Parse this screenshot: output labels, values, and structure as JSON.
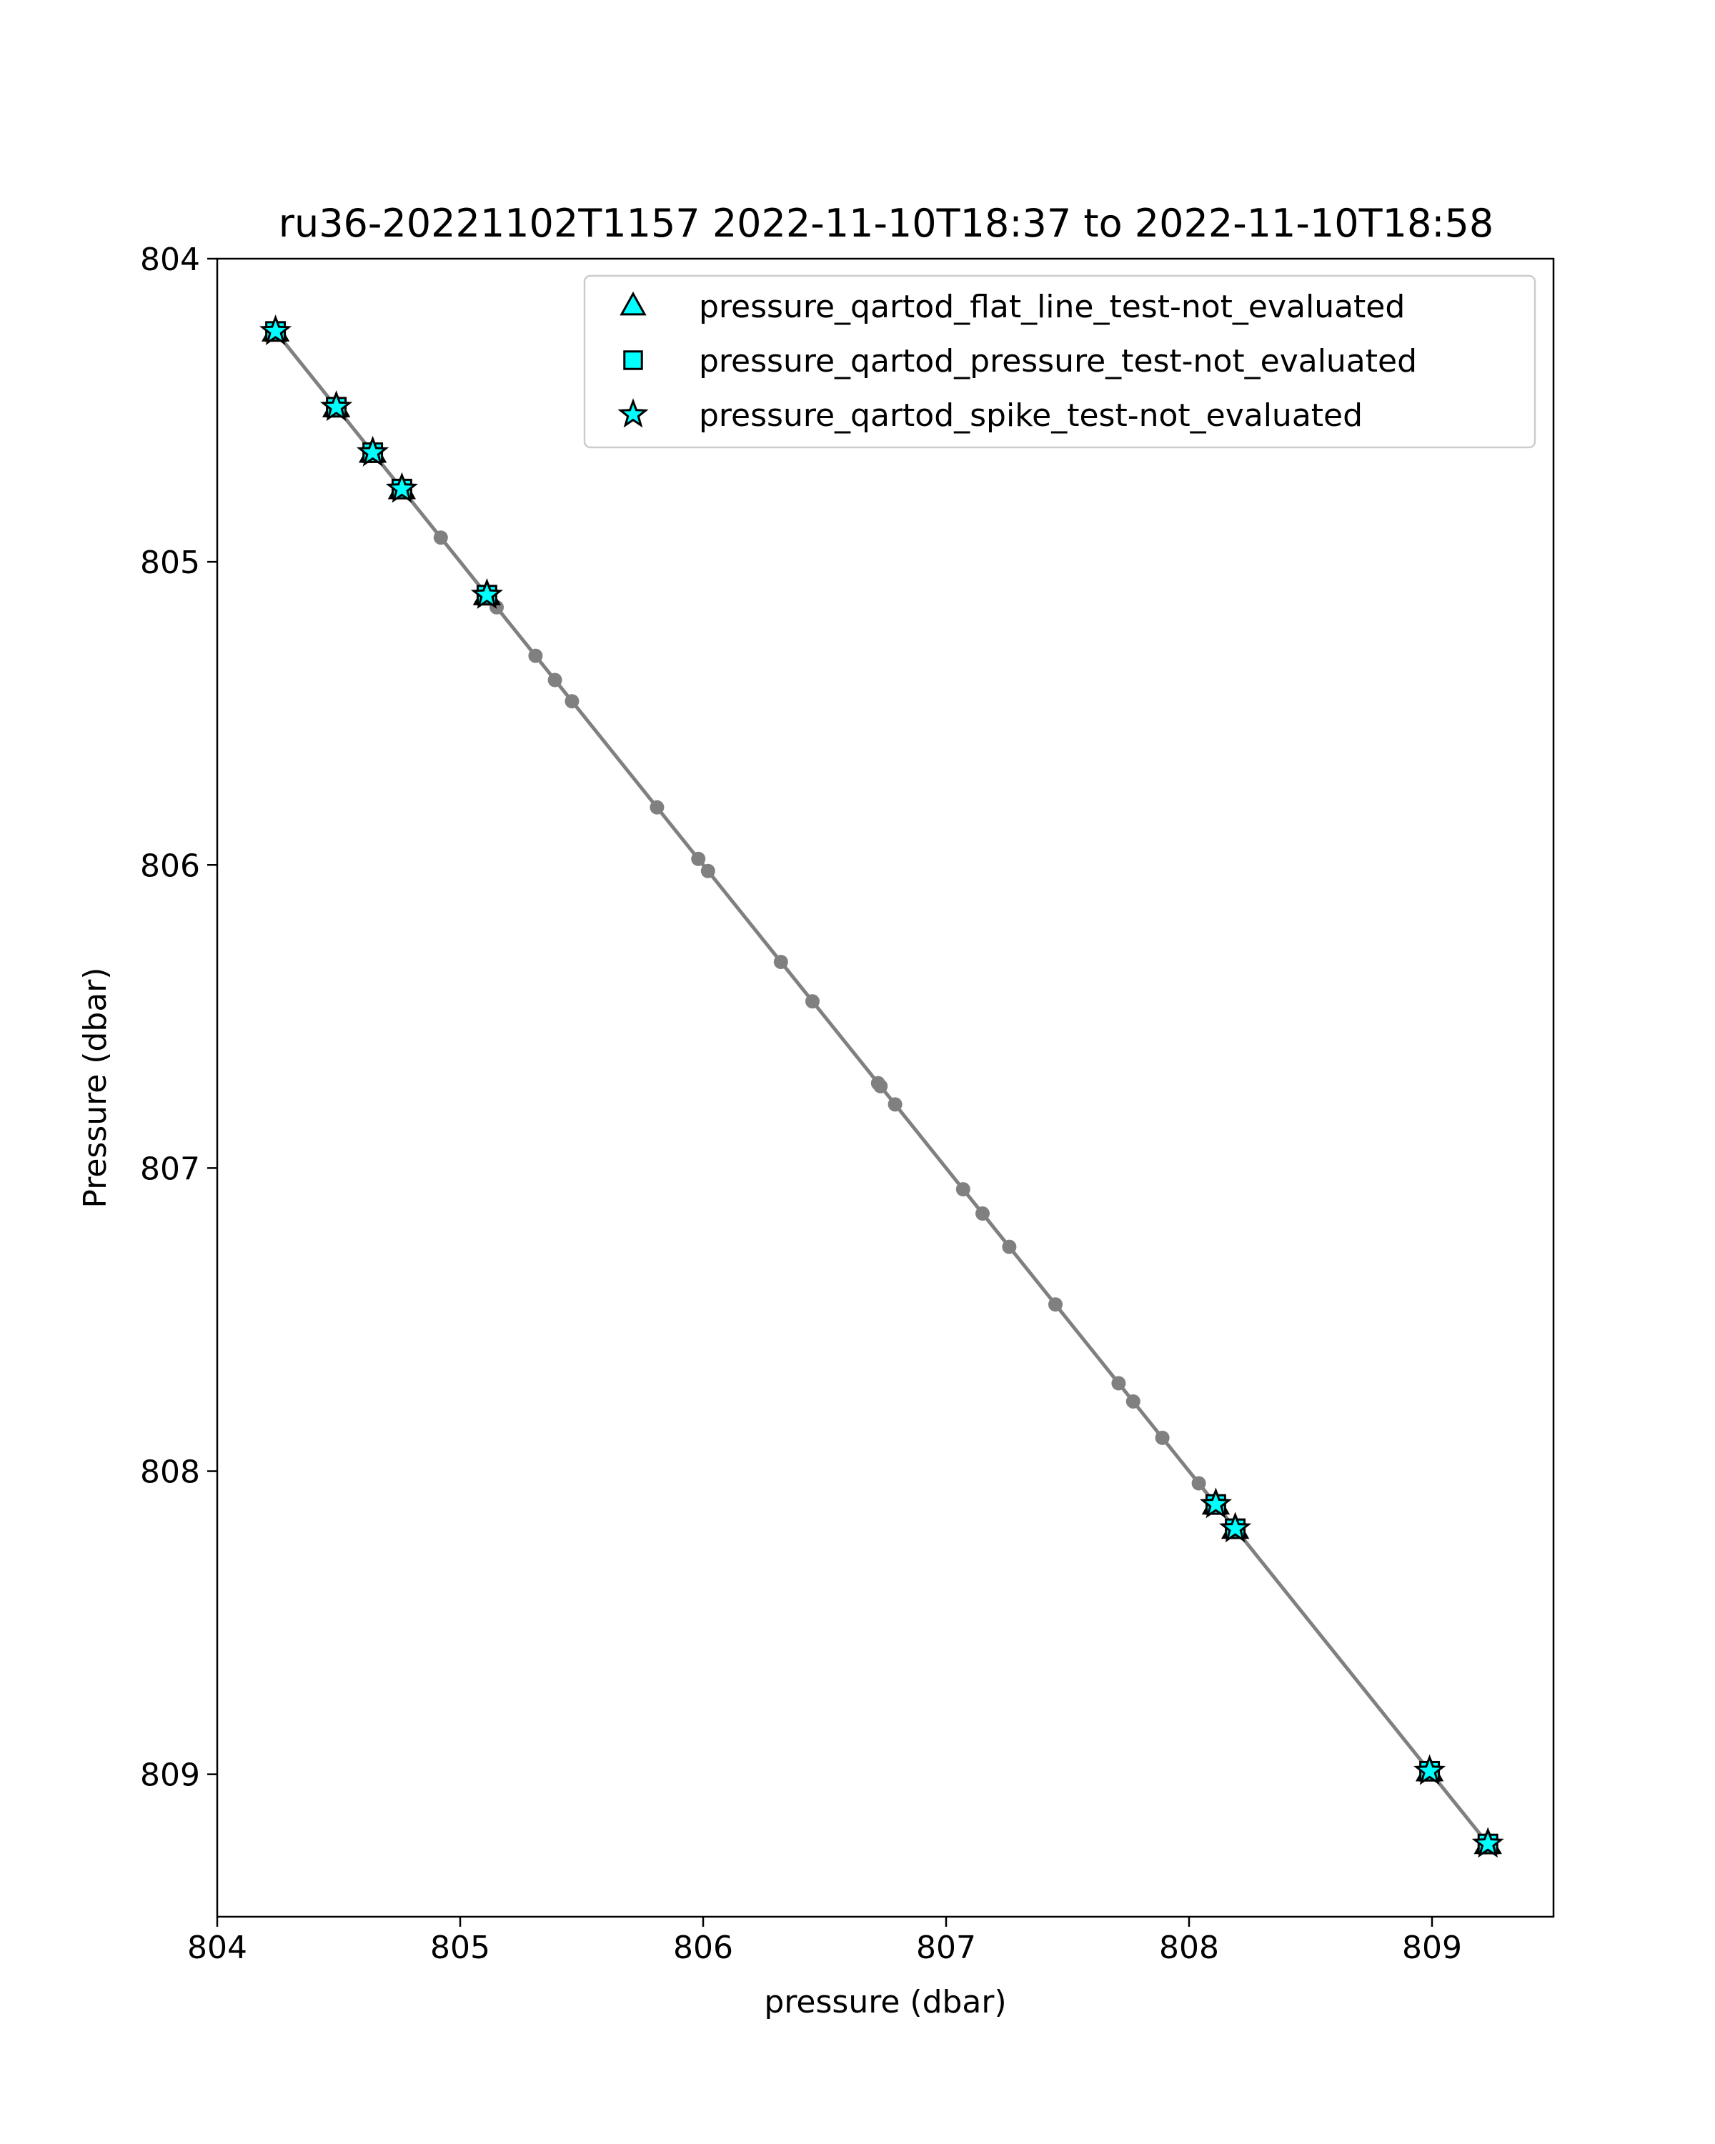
{
  "chart_data": {
    "type": "scatter",
    "title": "ru36-20221102T1157 2022-11-10T18:37 to 2022-11-10T18:58",
    "xlabel": "pressure (dbar)",
    "ylabel": "Pressure (dbar)",
    "xlim": [
      804.0,
      809.5
    ],
    "ylim": [
      809.47,
      804.0
    ],
    "y_inverted": true,
    "grid": false,
    "legend_position": "top-right",
    "xticks": [
      "804",
      "805",
      "806",
      "807",
      "808",
      "809"
    ],
    "yticks": [
      "804",
      "805",
      "806",
      "807",
      "808",
      "809"
    ],
    "line": {
      "color": "#808080",
      "points": [
        804.24,
        804.49,
        804.64,
        804.76,
        804.92,
        805.11,
        805.15,
        805.31,
        805.39,
        805.46,
        805.81,
        805.98,
        806.02,
        806.32,
        806.45,
        806.72,
        806.73,
        806.79,
        807.07,
        807.15,
        807.26,
        807.45,
        807.71,
        807.77,
        807.89,
        808.04,
        808.11,
        808.19,
        808.99,
        809.23
      ]
    },
    "series": [
      {
        "name": "pressure_qartod_flat_line_test-not_evaluated",
        "marker": "triangle",
        "color": "#00ffff",
        "x": [
          804.24,
          804.49,
          804.64,
          804.76,
          805.11,
          808.11,
          808.19,
          808.99,
          809.23
        ],
        "y": [
          804.24,
          804.49,
          804.64,
          804.76,
          805.11,
          808.11,
          808.19,
          808.99,
          809.23
        ]
      },
      {
        "name": "pressure_qartod_pressure_test-not_evaluated",
        "marker": "square",
        "color": "#00ffff",
        "x": [
          804.24,
          804.49,
          804.64,
          804.76,
          805.11,
          808.11,
          808.19,
          808.99,
          809.23
        ],
        "y": [
          804.24,
          804.49,
          804.64,
          804.76,
          805.11,
          808.11,
          808.19,
          808.99,
          809.23
        ]
      },
      {
        "name": "pressure_qartod_spike_test-not_evaluated",
        "marker": "star",
        "color": "#00ffff",
        "x": [
          804.24,
          804.49,
          804.64,
          804.76,
          805.11,
          808.11,
          808.19,
          808.99,
          809.23
        ],
        "y": [
          804.24,
          804.49,
          804.64,
          804.76,
          805.11,
          808.11,
          808.19,
          808.99,
          809.23
        ]
      }
    ]
  }
}
